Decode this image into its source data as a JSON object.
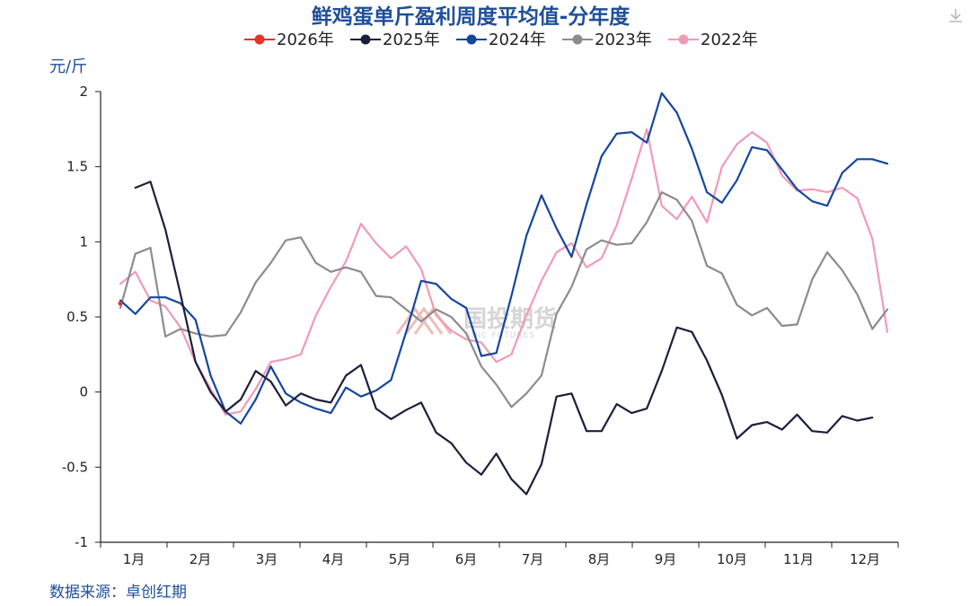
{
  "chart_data": {
    "type": "line",
    "title": "鲜鸡蛋单斤盈利周度平均值-分年度",
    "ylabel": "元/斤",
    "source": "数据来源：卓创红期",
    "watermark": "国投期货",
    "watermark_sub": "SDIC FUTURES",
    "ylim": [
      -1,
      2
    ],
    "yticks": [
      {
        "value": 2,
        "label": "2"
      },
      {
        "value": 1.5,
        "label": "1.5"
      },
      {
        "value": 1,
        "label": "1"
      },
      {
        "value": 0.5,
        "label": "0.5"
      },
      {
        "value": 0,
        "label": "0"
      },
      {
        "value": -0.5,
        "label": "-0.5"
      },
      {
        "value": -1,
        "label": "-1"
      }
    ],
    "xlim": [
      1,
      52
    ],
    "xlabels": [
      "1月",
      "2月",
      "3月",
      "4月",
      "5月",
      "6月",
      "7月",
      "8月",
      "9月",
      "10月",
      "11月",
      "12月"
    ],
    "grid": false,
    "legend_position": "top",
    "series": [
      {
        "name": "2026年",
        "color": "#e8312a",
        "x": [
          1
        ],
        "y": [
          0.59
        ]
      },
      {
        "name": "2025年",
        "color": "#1c1f3b",
        "x": [
          2,
          3,
          4,
          5,
          6,
          7,
          8,
          9,
          10,
          11,
          12,
          13,
          14,
          15,
          16,
          17,
          18,
          19,
          20,
          21,
          22,
          23,
          24,
          25,
          26,
          27,
          28,
          29,
          30,
          31,
          32,
          33,
          34,
          35,
          36,
          37,
          38,
          39,
          40,
          41,
          42,
          43,
          44,
          45,
          46,
          47,
          48,
          49,
          50,
          51
        ],
        "y": [
          1.36,
          1.4,
          1.08,
          0.65,
          0.2,
          0.0,
          -0.13,
          -0.05,
          0.14,
          0.07,
          -0.09,
          -0.01,
          -0.05,
          -0.07,
          0.11,
          0.18,
          -0.11,
          -0.18,
          -0.12,
          -0.07,
          -0.27,
          -0.34,
          -0.47,
          -0.55,
          -0.41,
          -0.58,
          -0.68,
          -0.48,
          -0.03,
          -0.01,
          -0.26,
          -0.26,
          -0.08,
          -0.14,
          -0.11,
          0.14,
          0.43,
          0.4,
          0.21,
          -0.02,
          -0.31,
          -0.22,
          -0.2,
          -0.25,
          -0.15,
          -0.26,
          -0.27,
          -0.16,
          -0.19,
          -0.17
        ]
      },
      {
        "name": "2024年",
        "color": "#1546a0",
        "x": [
          1,
          2,
          3,
          4,
          5,
          6,
          7,
          8,
          9,
          10,
          11,
          12,
          13,
          14,
          15,
          16,
          17,
          18,
          19,
          20,
          21,
          22,
          23,
          24,
          25,
          26,
          27,
          28,
          29,
          30,
          31,
          32,
          33,
          34,
          35,
          36,
          37,
          38,
          39,
          40,
          41,
          42,
          43,
          44,
          45,
          46,
          47,
          48,
          49,
          50,
          51,
          52
        ],
        "y": [
          0.61,
          0.52,
          0.63,
          0.63,
          0.59,
          0.48,
          0.11,
          -0.13,
          -0.21,
          -0.05,
          0.17,
          -0.01,
          -0.07,
          -0.11,
          -0.14,
          0.03,
          -0.03,
          0.01,
          0.08,
          0.4,
          0.74,
          0.72,
          0.62,
          0.56,
          0.24,
          0.26,
          0.64,
          1.04,
          1.31,
          1.09,
          0.9,
          1.25,
          1.57,
          1.72,
          1.73,
          1.66,
          1.99,
          1.86,
          1.62,
          1.33,
          1.26,
          1.41,
          1.63,
          1.61,
          1.48,
          1.35,
          1.27,
          1.24,
          1.46,
          1.55,
          1.55,
          1.52
        ]
      },
      {
        "name": "2023年",
        "color": "#8c8c8c",
        "x": [
          1,
          2,
          3,
          4,
          5,
          6,
          7,
          8,
          9,
          10,
          11,
          12,
          13,
          14,
          15,
          16,
          17,
          18,
          19,
          20,
          21,
          22,
          23,
          24,
          25,
          26,
          27,
          28,
          29,
          30,
          31,
          32,
          33,
          34,
          35,
          36,
          37,
          38,
          39,
          40,
          41,
          42,
          43,
          44,
          45,
          46,
          47,
          48,
          49,
          50,
          51,
          52
        ],
        "y": [
          0.56,
          0.92,
          0.96,
          0.37,
          0.42,
          0.39,
          0.37,
          0.38,
          0.53,
          0.73,
          0.86,
          1.01,
          1.03,
          0.86,
          0.8,
          0.83,
          0.8,
          0.64,
          0.63,
          0.55,
          0.47,
          0.55,
          0.5,
          0.39,
          0.17,
          0.05,
          -0.1,
          -0.01,
          0.11,
          0.52,
          0.7,
          0.95,
          1.01,
          0.98,
          0.99,
          1.13,
          1.33,
          1.28,
          1.14,
          0.84,
          0.79,
          0.58,
          0.51,
          0.56,
          0.44,
          0.45,
          0.75,
          0.93,
          0.81,
          0.65,
          0.42,
          0.55
        ]
      },
      {
        "name": "2022年",
        "color": "#f29ab5",
        "x": [
          1,
          2,
          3,
          4,
          5,
          6,
          7,
          8,
          9,
          10,
          11,
          12,
          13,
          14,
          15,
          16,
          17,
          18,
          19,
          20,
          21,
          22,
          23,
          24,
          25,
          26,
          27,
          28,
          29,
          30,
          31,
          32,
          33,
          34,
          35,
          36,
          37,
          38,
          39,
          40,
          41,
          42,
          43,
          44,
          45,
          46,
          47,
          48,
          49,
          50,
          51,
          52
        ],
        "y": [
          0.72,
          0.8,
          0.61,
          0.57,
          0.43,
          0.2,
          0.02,
          -0.15,
          -0.13,
          0.02,
          0.2,
          0.22,
          0.25,
          0.51,
          0.7,
          0.87,
          1.12,
          0.99,
          0.89,
          0.97,
          0.82,
          0.51,
          0.41,
          0.35,
          0.33,
          0.2,
          0.25,
          0.51,
          0.74,
          0.93,
          0.99,
          0.83,
          0.89,
          1.11,
          1.42,
          1.75,
          1.24,
          1.15,
          1.3,
          1.13,
          1.5,
          1.65,
          1.73,
          1.66,
          1.44,
          1.34,
          1.35,
          1.33,
          1.36,
          1.29,
          1.02,
          0.4
        ]
      }
    ]
  },
  "ui": {
    "download_icon": "download-icon"
  }
}
